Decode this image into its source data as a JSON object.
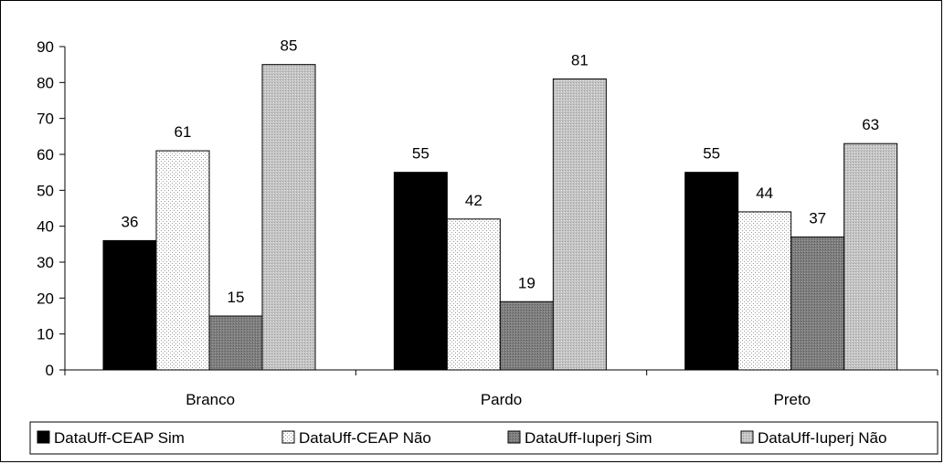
{
  "chart_data": {
    "type": "bar",
    "categories": [
      "Branco",
      "Pardo",
      "Preto"
    ],
    "series": [
      {
        "name": "DataUff-CEAP Sim",
        "values": [
          36,
          55,
          55
        ],
        "pattern": "solid-black"
      },
      {
        "name": "DataUff-CEAP Não",
        "values": [
          61,
          42,
          44
        ],
        "pattern": "light-dots"
      },
      {
        "name": "DataUff-Iuperj Sim",
        "values": [
          15,
          19,
          37
        ],
        "pattern": "dark-gray"
      },
      {
        "name": "DataUff-Iuperj Não",
        "values": [
          85,
          81,
          63
        ],
        "pattern": "light-gray"
      }
    ],
    "title": "",
    "xlabel": "",
    "ylabel": "",
    "ylim": [
      0,
      90
    ],
    "yticks": [
      0,
      10,
      20,
      30,
      40,
      50,
      60,
      70,
      80,
      90
    ],
    "grid": false,
    "data_labels": true,
    "legend_position": "bottom"
  }
}
